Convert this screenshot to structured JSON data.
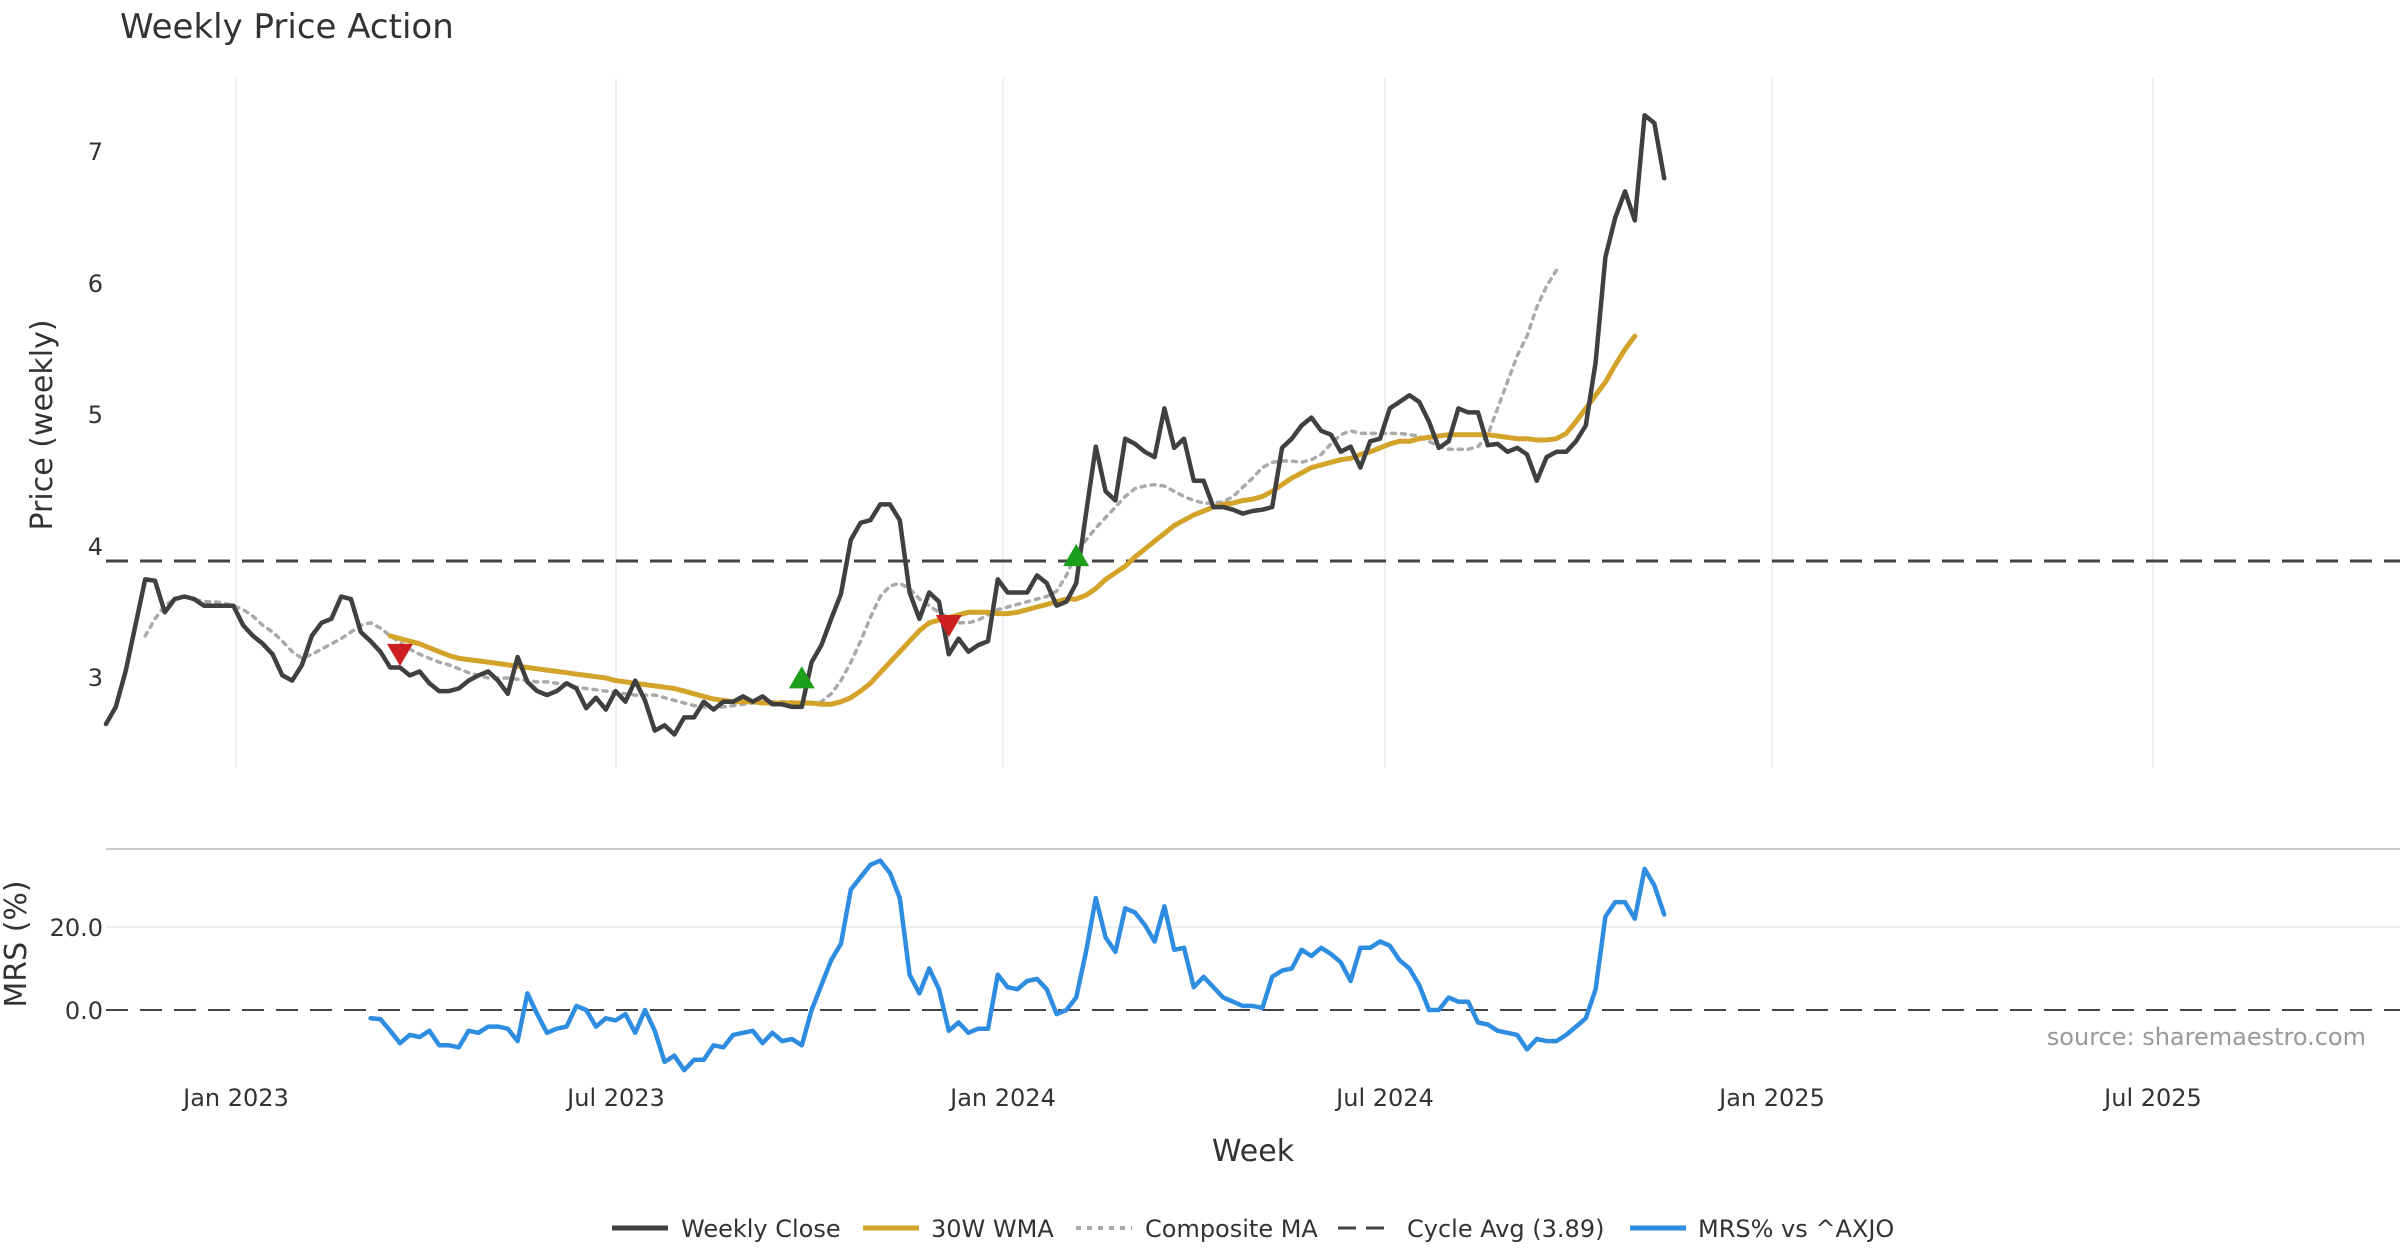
{
  "chart_data": {
    "type": "line",
    "title": "Weekly Price Action",
    "xlabel": "Week",
    "source": "source: sharemaestro.com",
    "x_ticks": [
      "Jan 2023",
      "Jul 2023",
      "Jan 2024",
      "Jul 2024",
      "Jan 2025",
      "Jul 2025"
    ],
    "price_panel": {
      "ylabel": "Price (weekly)",
      "ylim": [
        2.4,
        7.6
      ],
      "y_ticks": [
        "3",
        "4",
        "5",
        "6",
        "7"
      ],
      "cycle_avg": 3.89,
      "series": [
        {
          "name": "Weekly Close",
          "color": "#404040",
          "start_week": 0,
          "values": [
            2.65,
            2.78,
            3.05,
            3.4,
            3.75,
            3.74,
            3.5,
            3.6,
            3.62,
            3.6,
            3.55,
            3.55,
            3.55,
            3.55,
            3.4,
            3.32,
            3.26,
            3.18,
            3.02,
            2.98,
            3.1,
            3.32,
            3.42,
            3.45,
            3.62,
            3.6,
            3.35,
            3.28,
            3.2,
            3.08,
            3.08,
            3.02,
            3.05,
            2.96,
            2.9,
            2.9,
            2.92,
            2.98,
            3.02,
            3.05,
            2.98,
            2.88,
            3.16,
            2.97,
            2.9,
            2.87,
            2.9,
            2.96,
            2.92,
            2.77,
            2.85,
            2.76,
            2.9,
            2.82,
            2.98,
            2.83,
            2.6,
            2.64,
            2.57,
            2.7,
            2.7,
            2.82,
            2.76,
            2.82,
            2.82,
            2.86,
            2.82,
            2.86,
            2.8,
            2.8,
            2.78,
            2.78,
            3.12,
            3.25,
            3.45,
            3.64,
            4.05,
            4.18,
            4.2,
            4.32,
            4.32,
            4.2,
            3.65,
            3.45,
            3.65,
            3.58,
            3.18,
            3.3,
            3.2,
            3.25,
            3.28,
            3.75,
            3.65,
            3.65,
            3.65,
            3.78,
            3.72,
            3.55,
            3.58,
            3.72,
            4.25,
            4.76,
            4.42,
            4.35,
            4.82,
            4.78,
            4.72,
            4.68,
            5.05,
            4.75,
            4.82,
            4.5,
            4.5,
            4.3,
            4.3,
            4.28,
            4.25,
            4.27,
            4.28,
            4.3,
            4.75,
            4.82,
            4.92,
            4.98,
            4.88,
            4.85,
            4.72,
            4.76,
            4.6,
            4.8,
            4.82,
            5.05,
            5.1,
            5.15,
            5.1,
            4.95,
            4.75,
            4.8,
            5.05,
            5.02,
            5.02,
            4.77,
            4.78,
            4.72,
            4.75,
            4.7,
            4.5,
            4.68,
            4.72,
            4.72,
            4.8,
            4.92,
            5.4,
            6.2,
            6.5,
            6.7,
            6.48,
            7.28,
            7.22,
            6.8
          ]
        },
        {
          "name": "30W WMA",
          "color": "#d4a32a",
          "start_week": 29,
          "values": [
            3.32,
            3.3,
            3.28,
            3.26,
            3.23,
            3.2,
            3.17,
            3.15,
            3.14,
            3.13,
            3.12,
            3.11,
            3.1,
            3.09,
            3.08,
            3.07,
            3.06,
            3.05,
            3.04,
            3.03,
            3.02,
            3.01,
            3.0,
            2.98,
            2.97,
            2.96,
            2.95,
            2.94,
            2.93,
            2.92,
            2.9,
            2.88,
            2.86,
            2.84,
            2.83,
            2.82,
            2.82,
            2.82,
            2.81,
            2.81,
            2.81,
            2.81,
            2.81,
            2.81,
            2.8,
            2.8,
            2.82,
            2.85,
            2.9,
            2.96,
            3.04,
            3.12,
            3.2,
            3.28,
            3.36,
            3.42,
            3.44,
            3.46,
            3.48,
            3.5,
            3.5,
            3.5,
            3.49,
            3.49,
            3.5,
            3.52,
            3.54,
            3.56,
            3.58,
            3.6,
            3.6,
            3.63,
            3.68,
            3.75,
            3.8,
            3.85,
            3.92,
            3.98,
            4.04,
            4.1,
            4.16,
            4.2,
            4.24,
            4.27,
            4.3,
            4.32,
            4.33,
            4.35,
            4.36,
            4.38,
            4.42,
            4.47,
            4.52,
            4.56,
            4.6,
            4.62,
            4.64,
            4.66,
            4.67,
            4.7,
            4.72,
            4.75,
            4.78,
            4.8,
            4.8,
            4.82,
            4.83,
            4.84,
            4.85,
            4.85,
            4.85,
            4.85,
            4.85,
            4.84,
            4.83,
            4.82,
            4.82,
            4.81,
            4.81,
            4.82,
            4.86,
            4.95,
            5.05,
            5.15,
            5.25,
            5.38,
            5.5,
            5.6
          ]
        },
        {
          "name": "Composite MA",
          "color": "#aaaaaa",
          "start_week": 4,
          "values": [
            3.32,
            3.45,
            3.55,
            3.6,
            3.62,
            3.6,
            3.58,
            3.58,
            3.57,
            3.55,
            3.52,
            3.47,
            3.4,
            3.35,
            3.28,
            3.2,
            3.15,
            3.18,
            3.22,
            3.26,
            3.3,
            3.35,
            3.4,
            3.42,
            3.38,
            3.32,
            3.27,
            3.22,
            3.18,
            3.15,
            3.12,
            3.1,
            3.07,
            3.04,
            3.02,
            3.0,
            3.0,
            3.0,
            2.99,
            2.98,
            2.97,
            2.97,
            2.96,
            2.95,
            2.93,
            2.92,
            2.91,
            2.9,
            2.89,
            2.88,
            2.87,
            2.87,
            2.87,
            2.85,
            2.83,
            2.81,
            2.79,
            2.78,
            2.77,
            2.78,
            2.79,
            2.8,
            2.81,
            2.82,
            2.82,
            2.82,
            2.82,
            2.81,
            2.8,
            2.82,
            2.88,
            2.98,
            3.12,
            3.28,
            3.46,
            3.62,
            3.7,
            3.72,
            3.68,
            3.6,
            3.55,
            3.5,
            3.46,
            3.42,
            3.42,
            3.44,
            3.48,
            3.52,
            3.54,
            3.56,
            3.58,
            3.6,
            3.62,
            3.66,
            3.78,
            3.95,
            4.05,
            4.14,
            4.22,
            4.3,
            4.38,
            4.44,
            4.46,
            4.47,
            4.46,
            4.42,
            4.38,
            4.35,
            4.33,
            4.33,
            4.34,
            4.38,
            4.45,
            4.52,
            4.6,
            4.64,
            4.65,
            4.65,
            4.64,
            4.66,
            4.7,
            4.78,
            4.85,
            4.88,
            4.86,
            4.86,
            4.86,
            4.86,
            4.86,
            4.85,
            4.84,
            4.8,
            4.76,
            4.74,
            4.74,
            4.74,
            4.76,
            4.85,
            5.05,
            5.25,
            5.45,
            5.6,
            5.82,
            5.98,
            6.1
          ]
        }
      ],
      "markers": [
        {
          "type": "sell",
          "color": "#cc1f1f",
          "week": 30,
          "value": 3.18
        },
        {
          "type": "buy",
          "color": "#1d9e1d",
          "week": 71,
          "value": 3.0
        },
        {
          "type": "sell",
          "color": "#cc1f1f",
          "week": 86,
          "value": 3.4
        },
        {
          "type": "buy",
          "color": "#1d9e1d",
          "week": 99,
          "value": 3.93
        }
      ]
    },
    "mrs_panel": {
      "ylabel": "MRS (%)",
      "ylim": [
        -14,
        39
      ],
      "y_ticks": [
        "20.0",
        "0.0"
      ],
      "series": [
        {
          "name": "MRS% vs ^AXJO",
          "color": "#2e8de0",
          "start_week": 27,
          "values": [
            -2,
            -2.2,
            -5,
            -8,
            -6,
            -6.5,
            -5,
            -8.5,
            -8.5,
            -9,
            -5,
            -5.5,
            -4,
            -4,
            -4.5,
            -7.5,
            4,
            -1,
            -5.5,
            -4.5,
            -4,
            1,
            0,
            -4,
            -2,
            -2.5,
            -1,
            -5.5,
            0,
            -5,
            -12.5,
            -11,
            -14.5,
            -12,
            -12,
            -8.5,
            -9,
            -6,
            -5.5,
            -5,
            -8,
            -5.5,
            -7.5,
            -7,
            -8.5,
            0,
            6,
            12,
            16,
            29,
            32,
            35,
            36,
            33,
            27,
            8.5,
            4,
            10,
            5,
            -5,
            -3,
            -5.5,
            -4.5,
            -4.5,
            8.5,
            5.5,
            5,
            7,
            7.5,
            5,
            -1,
            0,
            3,
            14,
            27,
            17.5,
            14,
            24.5,
            23.5,
            20.5,
            16.5,
            25,
            14.5,
            15,
            5.5,
            8,
            5.5,
            3,
            2,
            1,
            1,
            0.5,
            8,
            9.5,
            10,
            14.5,
            13,
            15,
            13.5,
            11.5,
            7,
            15,
            15,
            16.5,
            15.5,
            12,
            10,
            6,
            0,
            0,
            3,
            2,
            2,
            -3,
            -3.5,
            -5,
            -5.5,
            -6,
            -9.5,
            -7,
            -7.5,
            -7.5,
            -6,
            -4,
            -2,
            5,
            22.5,
            26,
            26,
            22,
            34,
            30,
            23
          ]
        }
      ]
    },
    "legend": [
      {
        "label": "Weekly Close",
        "color": "#404040",
        "style": "solid"
      },
      {
        "label": "30W WMA",
        "color": "#d4a32a",
        "style": "solid"
      },
      {
        "label": "Composite MA",
        "color": "#aaaaaa",
        "style": "dotted"
      },
      {
        "label": "Cycle Avg (3.89)",
        "color": "#444444",
        "style": "dashed"
      },
      {
        "label": "MRS% vs ^AXJO",
        "color": "#2e8de0",
        "style": "solid"
      }
    ]
  }
}
